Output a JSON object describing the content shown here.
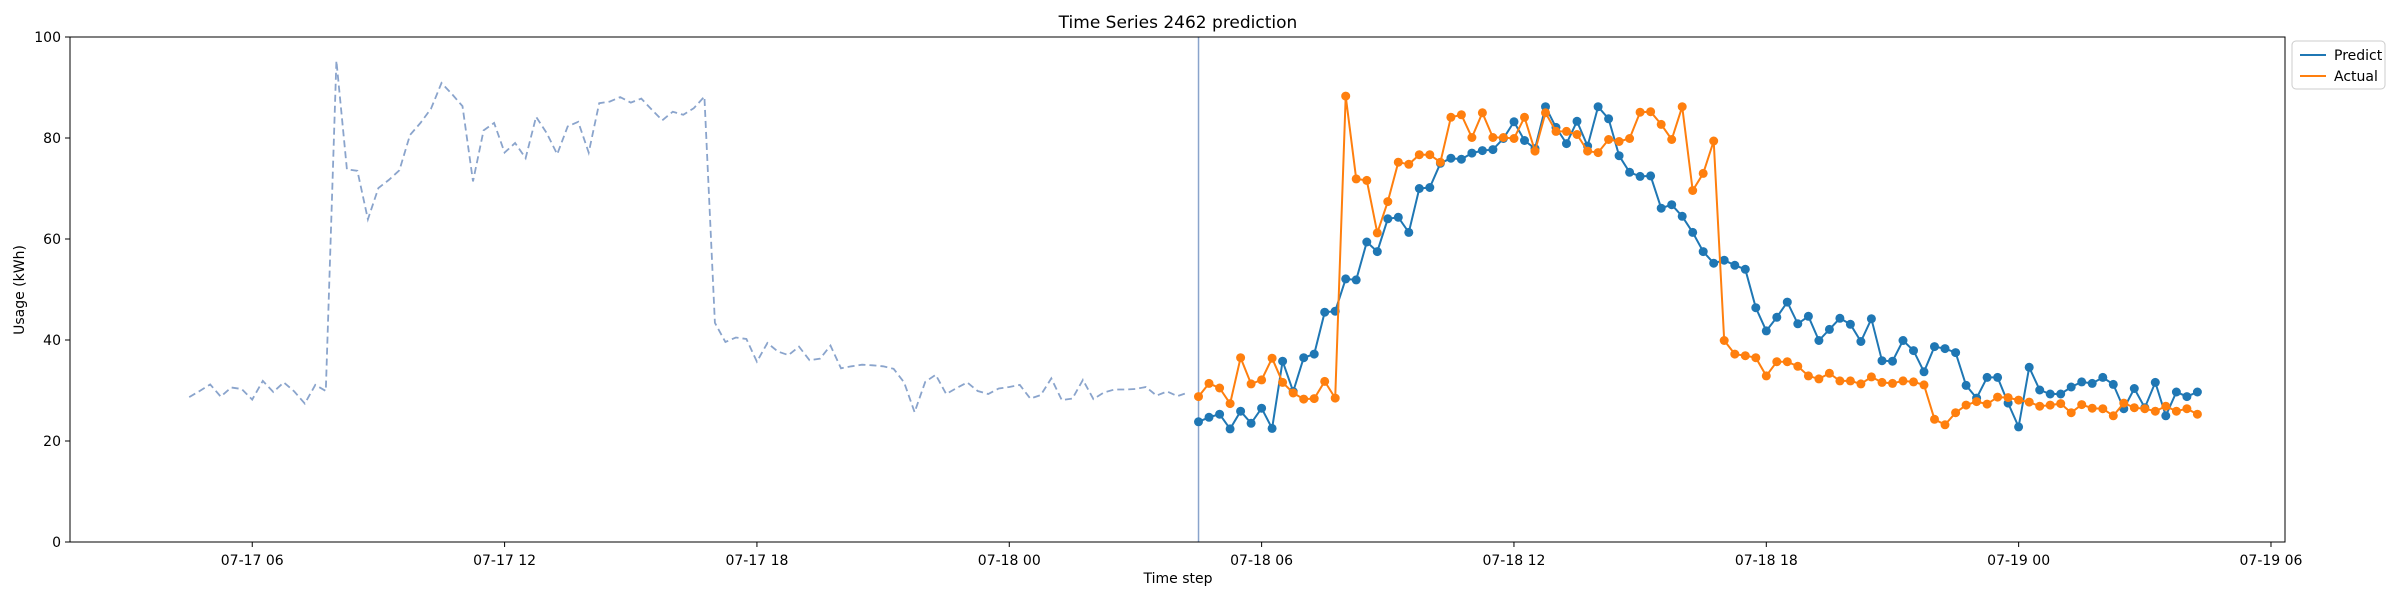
{
  "chart_data": {
    "type": "line",
    "title": "Time Series 2462 prediction",
    "xlabel": "Time step",
    "ylabel": "Usage (kWh)",
    "x_range": [
      "2023-07-17 01:40",
      "2023-07-19 06:20"
    ],
    "ylim": [
      0,
      100
    ],
    "y_ticks": [
      0,
      20,
      40,
      60,
      80,
      100
    ],
    "x_ticks": [
      {
        "t": "2023-07-17 06:00",
        "label": "07-17 06"
      },
      {
        "t": "2023-07-17 12:00",
        "label": "07-17 12"
      },
      {
        "t": "2023-07-17 18:00",
        "label": "07-17 18"
      },
      {
        "t": "2023-07-18 00:00",
        "label": "07-18 00"
      },
      {
        "t": "2023-07-18 06:00",
        "label": "07-18 06"
      },
      {
        "t": "2023-07-18 12:00",
        "label": "07-18 12"
      },
      {
        "t": "2023-07-18 18:00",
        "label": "07-18 18"
      },
      {
        "t": "2023-07-19 00:00",
        "label": "07-19 00"
      },
      {
        "t": "2023-07-19 06:00",
        "label": "07-19 06"
      }
    ],
    "forecast_start": "2023-07-18 04:30",
    "grid": false,
    "legend_position": "upper-right-outside",
    "history": {
      "start": "2023-07-17 04:30",
      "interval_minutes": 15,
      "color": "#8aa4cc",
      "style": "dashed",
      "values": [
        28.7,
        29.9,
        31.2,
        28.8,
        30.6,
        30.3,
        28.2,
        31.9,
        29.7,
        31.6,
        29.8,
        27.4,
        31.1,
        29.9,
        95.3,
        73.8,
        73.5,
        63.9,
        70.1,
        71.7,
        73.6,
        80.6,
        83.0,
        85.8,
        90.9,
        88.7,
        86.3,
        71.4,
        81.5,
        83.0,
        77.1,
        79.0,
        76.0,
        84.2,
        81.0,
        76.8,
        82.3,
        83.2,
        77.1,
        86.9,
        87.2,
        88.1,
        87.0,
        87.8,
        85.6,
        83.5,
        85.2,
        84.6,
        85.9,
        88.2,
        43.4,
        39.6,
        40.5,
        40.2,
        35.7,
        39.4,
        37.7,
        37.0,
        38.7,
        36.0,
        36.3,
        38.9,
        34.4,
        34.8,
        35.1,
        35.0,
        34.8,
        34.3,
        31.6,
        25.7,
        31.7,
        33.1,
        29.3,
        30.5,
        31.6,
        29.9,
        29.3,
        30.4,
        30.7,
        31.1,
        28.4,
        29.1,
        32.4,
        28.1,
        28.4,
        32.1,
        28.3,
        29.6,
        30.2,
        30.2,
        30.3,
        30.7,
        29.0,
        29.8,
        28.9,
        29.6
      ]
    },
    "series": [
      {
        "name": "Predict",
        "color": "#1f77b4",
        "start": "2023-07-18 04:30",
        "interval_minutes": 15,
        "values": [
          23.8,
          24.7,
          25.3,
          22.4,
          25.9,
          23.5,
          26.5,
          22.5,
          35.8,
          29.8,
          36.5,
          37.2,
          45.5,
          45.7,
          52.1,
          51.9,
          59.4,
          57.5,
          64.0,
          64.3,
          61.3,
          70.0,
          70.2,
          75.0,
          76.0,
          75.8,
          77.0,
          77.5,
          77.7,
          79.9,
          83.2,
          79.5,
          77.9,
          86.2,
          82.1,
          78.9,
          83.3,
          78.4,
          86.2,
          83.8,
          76.5,
          73.2,
          72.4,
          72.5,
          66.1,
          66.8,
          64.5,
          61.3,
          57.5,
          55.2,
          55.8,
          54.8,
          54.0,
          46.4,
          41.8,
          44.5,
          47.5,
          43.2,
          44.7,
          39.9,
          42.1,
          44.3,
          43.1,
          39.7,
          44.2,
          35.9,
          35.8,
          39.9,
          37.9,
          33.7,
          38.7,
          38.3,
          37.5,
          31.0,
          28.5,
          32.6,
          32.6,
          27.5,
          22.8,
          34.6,
          30.1,
          29.3,
          29.3,
          30.7,
          31.7,
          31.4,
          32.6,
          31.2,
          26.4,
          30.4,
          26.6,
          31.6,
          25.0,
          29.7,
          28.8,
          29.7
        ]
      },
      {
        "name": "Actual",
        "color": "#ff7f0e",
        "start": "2023-07-18 04:30",
        "interval_minutes": 15,
        "values": [
          28.8,
          31.4,
          30.5,
          27.4,
          36.5,
          31.3,
          32.1,
          36.4,
          31.6,
          29.5,
          28.3,
          28.4,
          31.8,
          28.5,
          88.3,
          71.9,
          71.6,
          61.2,
          67.4,
          75.2,
          74.8,
          76.7,
          76.7,
          75.2,
          84.1,
          84.6,
          80.1,
          85.0,
          80.1,
          80.1,
          79.9,
          84.1,
          77.4,
          85.0,
          81.3,
          81.3,
          80.7,
          77.4,
          77.1,
          79.7,
          79.3,
          79.9,
          85.1,
          85.2,
          82.7,
          79.7,
          86.2,
          69.6,
          73.0,
          79.4,
          39.9,
          37.2,
          36.9,
          36.5,
          32.9,
          35.7,
          35.7,
          34.8,
          32.9,
          32.3,
          33.4,
          31.9,
          31.9,
          31.3,
          32.7,
          31.6,
          31.4,
          31.9,
          31.7,
          31.1,
          24.3,
          23.2,
          25.6,
          27.1,
          27.8,
          27.3,
          28.7,
          28.6,
          28.1,
          27.7,
          26.9,
          27.1,
          27.4,
          25.6,
          27.2,
          26.5,
          26.4,
          25.0,
          27.5,
          26.6,
          26.4,
          25.9,
          26.9,
          25.9,
          26.4,
          25.3
        ]
      }
    ],
    "legend": [
      {
        "label": "Predict",
        "color": "#1f77b4"
      },
      {
        "label": "Actual",
        "color": "#ff7f0e"
      }
    ]
  }
}
